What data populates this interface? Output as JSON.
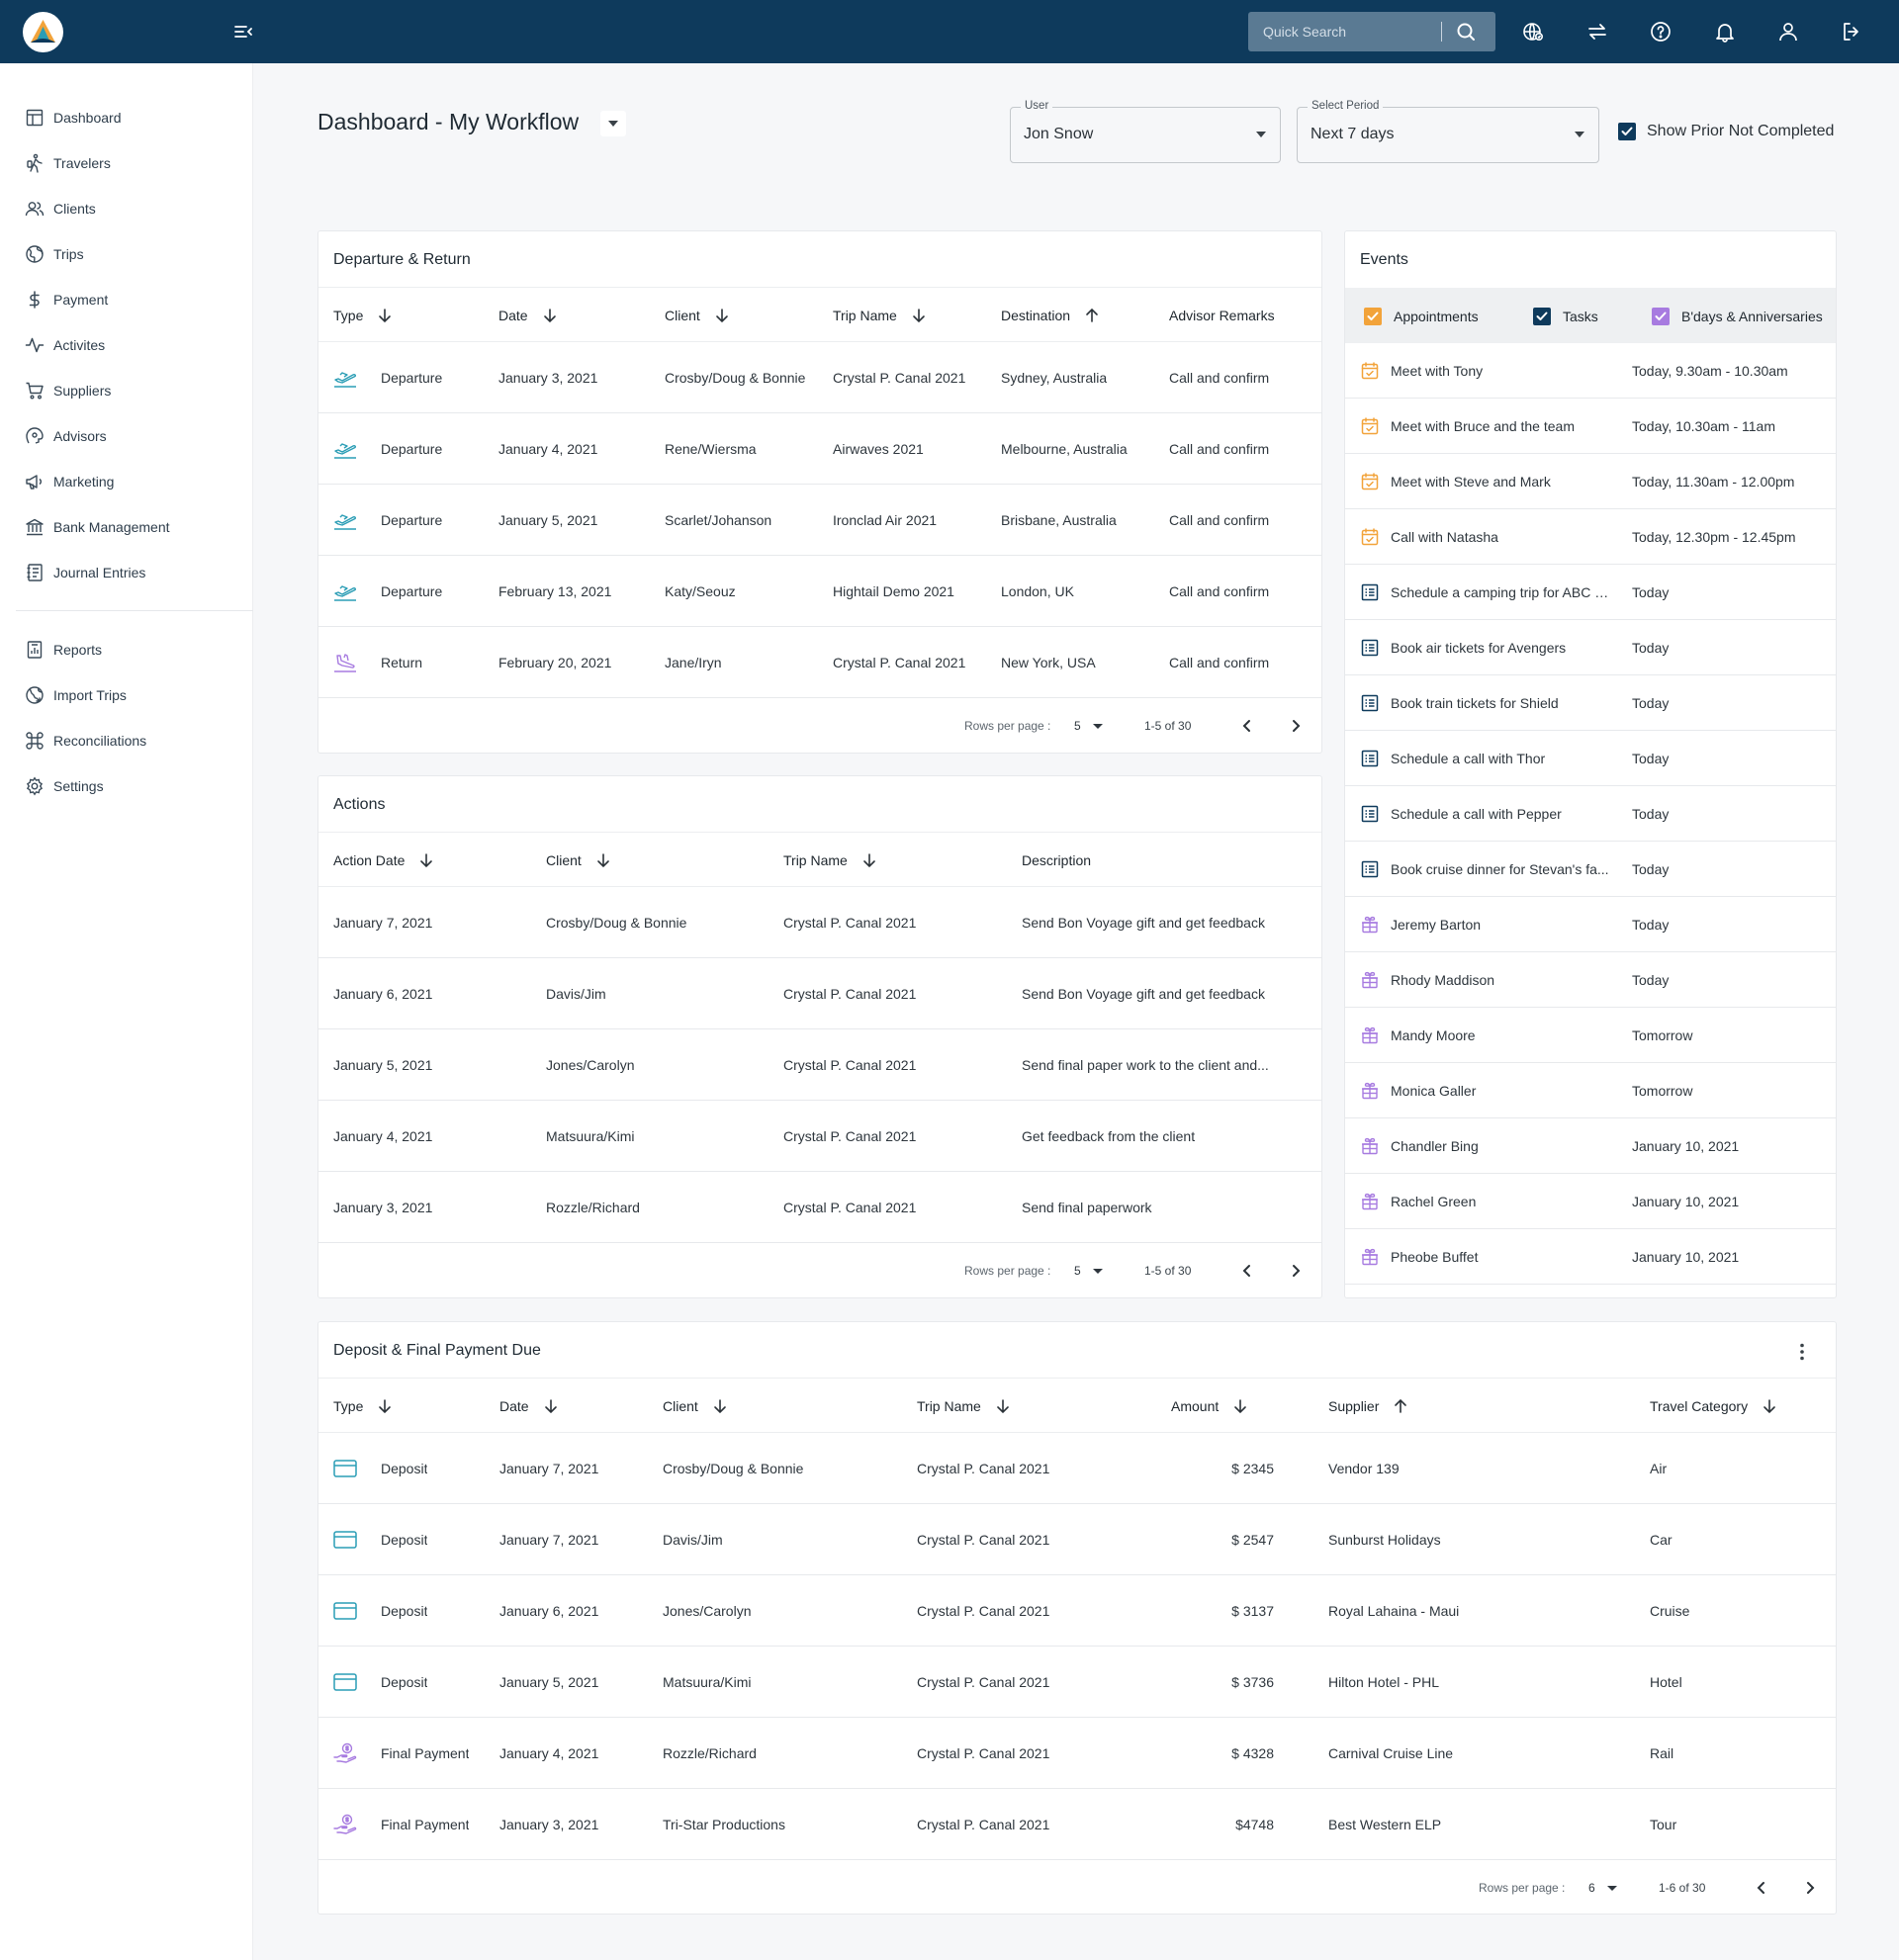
{
  "topbar": {
    "search_placeholder": "Quick Search",
    "icons": [
      "globe-icon",
      "swap-icon",
      "help-icon",
      "bell-icon",
      "user-icon",
      "logout-icon"
    ]
  },
  "sidebar": {
    "items": [
      {
        "label": "Dashboard",
        "icon": "dashboard-icon"
      },
      {
        "label": "Travelers",
        "icon": "traveler-icon"
      },
      {
        "label": "Clients",
        "icon": "clients-icon"
      },
      {
        "label": "Trips",
        "icon": "globe-icon"
      },
      {
        "label": "Payment",
        "icon": "dollar-icon"
      },
      {
        "label": "Activites",
        "icon": "activity-icon"
      },
      {
        "label": "Suppliers",
        "icon": "cart-icon"
      },
      {
        "label": "Advisors",
        "icon": "advisor-icon"
      },
      {
        "label": "Marketing",
        "icon": "megaphone-icon"
      },
      {
        "label": "Bank Management",
        "icon": "bank-icon"
      },
      {
        "label": "Journal Entries",
        "icon": "journal-icon"
      }
    ],
    "items2": [
      {
        "label": "Reports",
        "icon": "reports-icon"
      },
      {
        "label": "Import Trips",
        "icon": "import-icon"
      },
      {
        "label": "Reconciliations",
        "icon": "command-icon"
      },
      {
        "label": "Settings",
        "icon": "gear-icon"
      }
    ]
  },
  "header": {
    "title": "Dashboard - My Workflow",
    "user_label": "User",
    "user_value": "Jon Snow",
    "period_label": "Select Period",
    "period_value": "Next 7 days",
    "show_prior_label": "Show Prior Not Completed"
  },
  "departure": {
    "title": "Departure & Return",
    "columns": [
      "Type",
      "Date",
      "Client",
      "Trip Name",
      "Destination",
      "Advisor Remarks"
    ],
    "rows": [
      {
        "type": "Departure",
        "date": "January 3, 2021",
        "client": "Crosby/Doug & Bonnie",
        "trip": "Crystal P. Canal 2021",
        "destination": "Sydney, Australia",
        "remarks": "Call and confirm"
      },
      {
        "type": "Departure",
        "date": "January 4, 2021",
        "client": "Rene/Wiersma",
        "trip": "Airwaves 2021",
        "destination": "Melbourne, Australia",
        "remarks": "Call and confirm"
      },
      {
        "type": "Departure",
        "date": "January 5, 2021",
        "client": "Scarlet/Johanson",
        "trip": "Ironclad Air 2021",
        "destination": "Brisbane, Australia",
        "remarks": "Call and confirm"
      },
      {
        "type": "Departure",
        "date": "February 13, 2021",
        "client": "Katy/Seouz",
        "trip": "Hightail Demo 2021",
        "destination": "London, UK",
        "remarks": "Call and confirm"
      },
      {
        "type": "Return",
        "date": "February 20, 2021",
        "client": "Jane/Iryn",
        "trip": "Crystal P. Canal 2021",
        "destination": "New York, USA",
        "remarks": "Call and confirm"
      }
    ],
    "rows_per_page_label": "Rows per page :",
    "rows_per_page": "5",
    "range": "1-5 of 30"
  },
  "actions": {
    "title": "Actions",
    "columns": [
      "Action Date",
      "Client",
      "Trip Name",
      "Description"
    ],
    "rows": [
      {
        "date": "January 7, 2021",
        "client": "Crosby/Doug & Bonnie",
        "trip": "Crystal P. Canal 2021",
        "description": "Send Bon Voyage gift and get feedback"
      },
      {
        "date": "January 6, 2021",
        "client": "Davis/Jim",
        "trip": "Crystal P. Canal 2021",
        "description": "Send Bon Voyage gift and get feedback"
      },
      {
        "date": "January 5, 2021",
        "client": "Jones/Carolyn",
        "trip": "Crystal P. Canal 2021",
        "description": "Send final paper work to the client and..."
      },
      {
        "date": "January 4, 2021",
        "client": "Matsuura/Kimi",
        "trip": "Crystal P. Canal 2021",
        "description": "Get feedback from the client"
      },
      {
        "date": "January 3, 2021",
        "client": "Rozzle/Richard",
        "trip": "Crystal P. Canal 2021",
        "description": "Send final paperwork"
      }
    ],
    "rows_per_page_label": "Rows per page :",
    "rows_per_page": "5",
    "range": "1-5 of 30"
  },
  "events": {
    "title": "Events",
    "filters": [
      {
        "label": "Appointments",
        "color": "#f2a33a"
      },
      {
        "label": "Tasks",
        "color": "#0e3a5c"
      },
      {
        "label": "B'days & Anniversaries",
        "color": "#a77be0"
      }
    ],
    "items": [
      {
        "kind": "appointment",
        "name": "Meet with Tony",
        "time": "Today, 9.30am - 10.30am"
      },
      {
        "kind": "appointment",
        "name": "Meet with Bruce and the team",
        "time": "Today, 10.30am - 11am"
      },
      {
        "kind": "appointment",
        "name": "Meet with Steve and Mark",
        "time": "Today, 11.30am - 12.00pm"
      },
      {
        "kind": "appointment",
        "name": "Call with Natasha",
        "time": "Today, 12.30pm - 12.45pm"
      },
      {
        "kind": "task",
        "name": "Schedule a camping trip for ABC gr...",
        "time": "Today"
      },
      {
        "kind": "task",
        "name": "Book air tickets for Avengers",
        "time": "Today"
      },
      {
        "kind": "task",
        "name": "Book train tickets for Shield",
        "time": "Today"
      },
      {
        "kind": "task",
        "name": "Schedule a call with Thor",
        "time": "Today"
      },
      {
        "kind": "task",
        "name": "Schedule a call with Pepper",
        "time": "Today"
      },
      {
        "kind": "task",
        "name": "Book cruise dinner for Stevan's fa...",
        "time": "Today"
      },
      {
        "kind": "birthday",
        "name": "Jeremy Barton",
        "time": "Today"
      },
      {
        "kind": "birthday",
        "name": "Rhody Maddison",
        "time": "Today"
      },
      {
        "kind": "birthday",
        "name": "Mandy Moore",
        "time": "Tomorrow"
      },
      {
        "kind": "birthday",
        "name": "Monica Galler",
        "time": "Tomorrow"
      },
      {
        "kind": "birthday",
        "name": "Chandler Bing",
        "time": "January 10, 2021"
      },
      {
        "kind": "birthday",
        "name": "Rachel Green",
        "time": "January 10, 2021"
      },
      {
        "kind": "birthday",
        "name": "Pheobe Buffet",
        "time": "January 10, 2021"
      }
    ]
  },
  "deposit": {
    "title": "Deposit & Final Payment Due",
    "columns": [
      "Type",
      "Date",
      "Client",
      "Trip Name",
      "Amount",
      "Supplier",
      "Travel Category"
    ],
    "rows": [
      {
        "type": "Deposit",
        "date": "January 7, 2021",
        "client": "Crosby/Doug & Bonnie",
        "trip": "Crystal P. Canal 2021",
        "amount": "$ 2345",
        "supplier": "Vendor 139",
        "category": "Air"
      },
      {
        "type": "Deposit",
        "date": "January 7, 2021",
        "client": "Davis/Jim",
        "trip": "Crystal P. Canal 2021",
        "amount": "$ 2547",
        "supplier": "Sunburst Holidays",
        "category": "Car"
      },
      {
        "type": "Deposit",
        "date": "January 6, 2021",
        "client": "Jones/Carolyn",
        "trip": "Crystal P. Canal 2021",
        "amount": "$ 3137",
        "supplier": "Royal Lahaina - Maui",
        "category": "Cruise"
      },
      {
        "type": "Deposit",
        "date": "January 5, 2021",
        "client": "Matsuura/Kimi",
        "trip": "Crystal P. Canal 2021",
        "amount": "$ 3736",
        "supplier": "Hilton Hotel - PHL",
        "category": "Hotel"
      },
      {
        "type": "Final Payment",
        "date": "January 4, 2021",
        "client": "Rozzle/Richard",
        "trip": "Crystal P. Canal 2021",
        "amount": "$ 4328",
        "supplier": "Carnival Cruise Line",
        "category": "Rail"
      },
      {
        "type": "Final Payment",
        "date": "January 3, 2021",
        "client": "Tri-Star Productions",
        "trip": "Crystal P. Canal 2021",
        "amount": "$4748",
        "supplier": "Best Western ELP",
        "category": "Tour"
      }
    ],
    "rows_per_page_label": "Rows per page :",
    "rows_per_page": "6",
    "range": "1-6 of 30"
  },
  "colors": {
    "topbar": "#0e3a5c",
    "teal": "#2a9db5",
    "purple": "#a77be0",
    "orange": "#f2a33a"
  }
}
